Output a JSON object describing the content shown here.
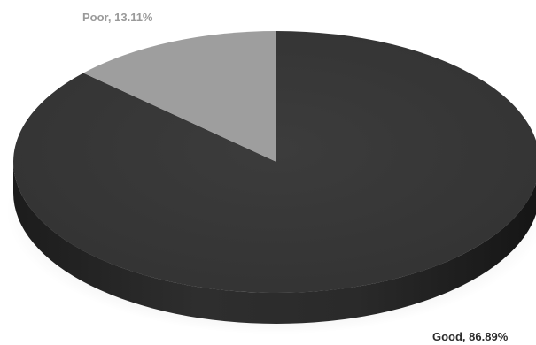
{
  "chart_data": {
    "type": "pie",
    "style": "3d",
    "title": "",
    "legend": "none",
    "slices": [
      {
        "name": "Good",
        "value": 86.89,
        "label": "Good, 86.89%",
        "color": "#3a3a3a",
        "label_color": "#2b2b2b"
      },
      {
        "name": "Poor",
        "value": 13.11,
        "label": "Poor, 13.11%",
        "color": "#9e9e9e",
        "label_color": "#9a9a9a"
      }
    ]
  }
}
